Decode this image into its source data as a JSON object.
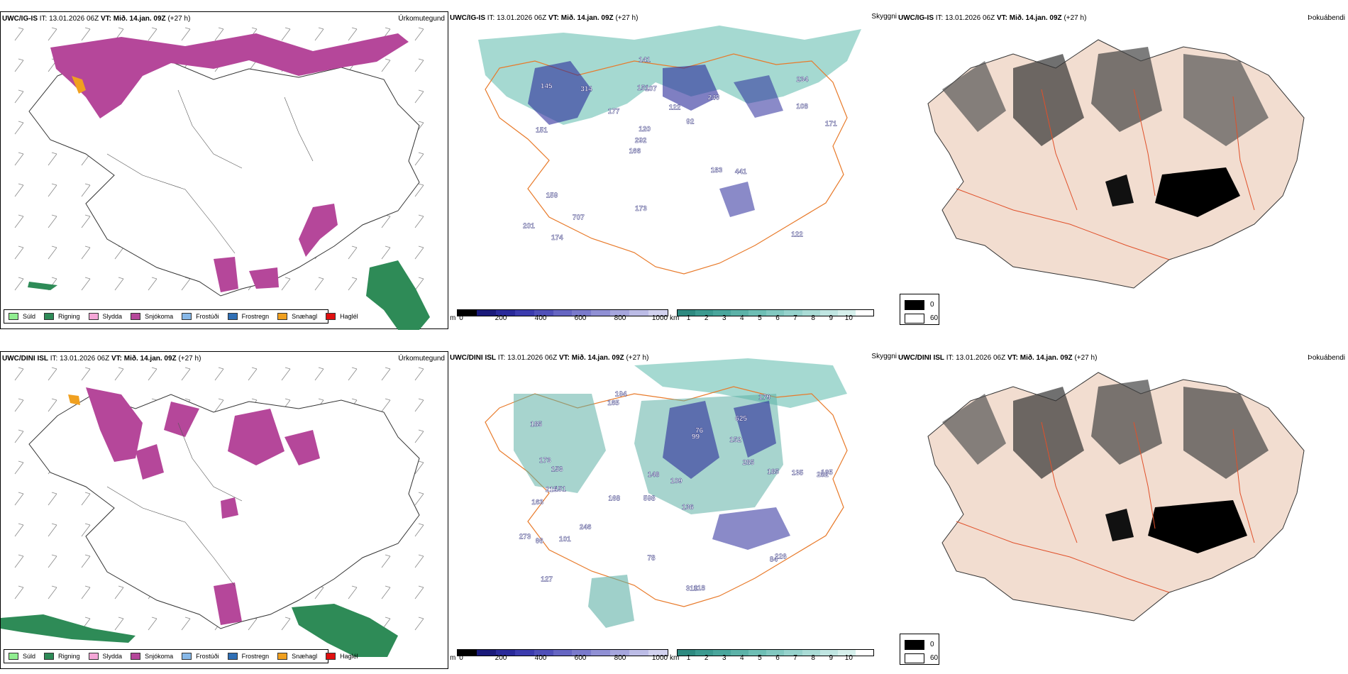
{
  "models": [
    {
      "id": "top",
      "model": "UWC/IG-IS",
      "it_label": "IT:",
      "it_value": "13.01.2026 06Z",
      "vt_label": "VT:",
      "vt_value": "Mið. 14.jan. 09Z",
      "lead": "(+27 h)"
    },
    {
      "id": "bottom",
      "model": "UWC/DINI ISL",
      "it_label": "IT:",
      "it_value": "13.01.2026 06Z",
      "vt_label": "VT:",
      "vt_value": "Mið. 14.jan. 09Z",
      "lead": "(+27 h)"
    }
  ],
  "panel_titles": {
    "precip": "Úrkomutegund",
    "vis": "Skyggni",
    "fog": "Þokuábendi"
  },
  "precip_legend": [
    {
      "label": "Súld",
      "color": "#90ee90"
    },
    {
      "label": "Rigning",
      "color": "#2e8b57"
    },
    {
      "label": "Slydda",
      "color": "#f4a6d7"
    },
    {
      "label": "Snjókoma",
      "color": "#b5479a"
    },
    {
      "label": "Frostúði",
      "color": "#87b8e8"
    },
    {
      "label": "Frostregn",
      "color": "#2f6fb5"
    },
    {
      "label": "Snæhagl",
      "color": "#f0a020"
    },
    {
      "label": "Haglél",
      "color": "#e01010"
    }
  ],
  "vis_colorbar_m": {
    "unit": "m",
    "ticks": [
      "0",
      "200",
      "400",
      "600",
      "800",
      "1000"
    ],
    "colors": [
      "#000000",
      "#1a1a7a",
      "#2a2a9a",
      "#3c3cae",
      "#5050b8",
      "#6666c2",
      "#7a7acb",
      "#9090d4",
      "#a6a6dd",
      "#bcbce6",
      "#d2d2ef"
    ]
  },
  "vis_colorbar_km": {
    "unit": "km",
    "ticks": [
      "1",
      "2",
      "3",
      "4",
      "5",
      "6",
      "7",
      "8",
      "9",
      "10"
    ],
    "colors": [
      "#2e8a80",
      "#3c9a90",
      "#4aa69c",
      "#5cb2a8",
      "#6ebeb4",
      "#82c8c0",
      "#96d2cc",
      "#aadcd6",
      "#c0e6e2",
      "#d6f0ec",
      "#ffffff"
    ]
  },
  "fog_legend": {
    "min": "0",
    "max": "60"
  },
  "vis_labels_top": [
    "122",
    "151",
    "234",
    "166",
    "249",
    "174",
    "151",
    "122",
    "159",
    "177",
    "201",
    "707",
    "107",
    "92",
    "441",
    "145",
    "141",
    "171",
    "183",
    "108",
    "292",
    "173",
    "120",
    "314"
  ],
  "vis_labels_bottom": [
    "194",
    "625",
    "282",
    "598",
    "136",
    "151",
    "185",
    "152",
    "163",
    "99",
    "109",
    "127",
    "165",
    "168",
    "319",
    "118",
    "78",
    "179",
    "285",
    "246",
    "153",
    "215",
    "105",
    "135",
    "273",
    "173",
    "148",
    "185",
    "226",
    "66",
    "84",
    "76",
    "101"
  ],
  "colors": {
    "snow": "#b5479a",
    "rain": "#2e8b57",
    "sleet": "#f4a6d7",
    "ice_pellets": "#f0a020",
    "vis_teal": "#5fb0a6",
    "vis_blue": "#2a2a9a",
    "rivers": "#e87a2a",
    "fog_land": "#f2ddd0",
    "fog_roads": "#e0502a"
  }
}
